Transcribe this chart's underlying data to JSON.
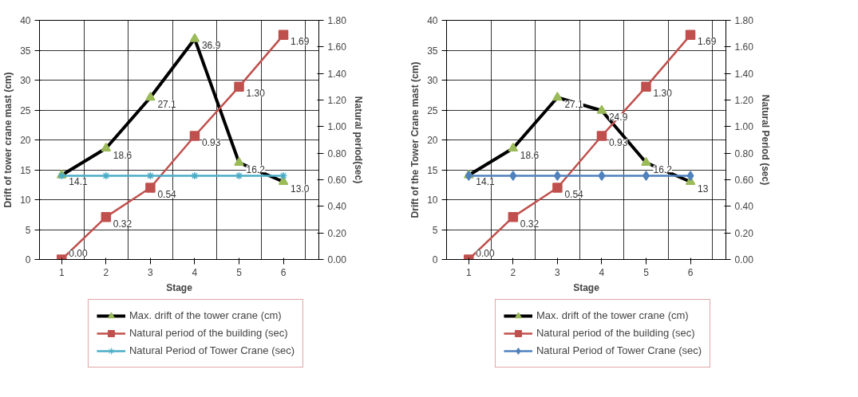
{
  "chart_data": [
    {
      "type": "line",
      "xlabel": "Stage",
      "ylabel": "Drift of tower crane mast (cm)",
      "y2label": "Natural period(sec)",
      "categories": [
        "1",
        "2",
        "3",
        "4",
        "5",
        "6"
      ],
      "ylim": [
        0,
        40
      ],
      "yticks": [
        0,
        5,
        10,
        15,
        20,
        25,
        30,
        35,
        40
      ],
      "y2lim": [
        0,
        1.8
      ],
      "y2ticks": [
        {
          "value": 0,
          "label": "0.00"
        },
        {
          "value": 0.2,
          "label": "0.20"
        },
        {
          "value": 0.4,
          "label": "0.40"
        },
        {
          "value": 0.6,
          "label": "0.60"
        },
        {
          "value": 0.8,
          "label": "0.80"
        },
        {
          "value": 1.0,
          "label": "1.00"
        },
        {
          "value": 1.2,
          "label": "1.20"
        },
        {
          "value": 1.4,
          "label": "1.40"
        },
        {
          "value": 1.6,
          "label": "1.60"
        },
        {
          "value": 1.8,
          "label": "1.80"
        }
      ],
      "grid": true,
      "legend": "bottom",
      "series": [
        {
          "name": "Max. drift of the tower crane (cm)",
          "color": "#000000",
          "marker": "triangle",
          "values": [
            14.1,
            18.6,
            27.1,
            36.9,
            16.2,
            13.0
          ],
          "value_labels": [
            "14.1",
            "18.6",
            "27.1",
            "36.9",
            "16.2",
            "13.0"
          ]
        },
        {
          "name": "Natural period of the building (sec)",
          "color": "#c0504d",
          "marker": "square",
          "axis": "y2",
          "values": [
            0.0,
            0.32,
            0.54,
            0.93,
            1.3,
            1.69
          ],
          "value_labels": [
            "0.00",
            "0.32",
            "0.54",
            "0.93",
            "1.30",
            "1.69"
          ]
        },
        {
          "name": "Natural Period of Tower Crane (sec)",
          "color": "#4bacc6",
          "marker": "cross",
          "axis": "y2",
          "values": [
            0.63,
            0.63,
            0.63,
            0.63,
            0.63,
            0.63
          ]
        }
      ]
    },
    {
      "type": "line",
      "xlabel": "Stage",
      "ylabel": "Drift of the Tower Crane mast (cm)",
      "y2label": "Natural Period (sec)",
      "categories": [
        "1",
        "2",
        "3",
        "4",
        "5",
        "6"
      ],
      "ylim": [
        0,
        40
      ],
      "yticks": [
        0,
        5,
        10,
        15,
        20,
        25,
        30,
        35,
        40
      ],
      "y2lim": [
        0,
        1.8
      ],
      "y2ticks": [
        {
          "value": 0,
          "label": "0.00"
        },
        {
          "value": 0.2,
          "label": "0.20"
        },
        {
          "value": 0.4,
          "label": "0.40"
        },
        {
          "value": 0.6,
          "label": "0.60"
        },
        {
          "value": 0.8,
          "label": "0.80"
        },
        {
          "value": 1.0,
          "label": "1.00"
        },
        {
          "value": 1.2,
          "label": "1.20"
        },
        {
          "value": 1.4,
          "label": "1.40"
        },
        {
          "value": 1.6,
          "label": "1.60"
        },
        {
          "value": 1.8,
          "label": "1.80"
        }
      ],
      "grid": true,
      "legend": "bottom",
      "series": [
        {
          "name": "Max. drift of the tower crane (cm)",
          "color": "#000000",
          "marker": "triangle",
          "values": [
            14.1,
            18.6,
            27.1,
            24.9,
            16.2,
            13
          ],
          "value_labels": [
            "14.1",
            "18.6",
            "27.1",
            "24.9",
            "16.2",
            "13"
          ]
        },
        {
          "name": "Natural period of the building (sec)",
          "color": "#c0504d",
          "marker": "square",
          "axis": "y2",
          "values": [
            0.0,
            0.32,
            0.54,
            0.93,
            1.3,
            1.69
          ],
          "value_labels": [
            "0.00",
            "0.32",
            "0.54",
            "0.93",
            "1.30",
            "1.69"
          ]
        },
        {
          "name": "Natural Period of Tower Crane (sec)",
          "color": "#4f81bd",
          "marker": "diamond",
          "axis": "y2",
          "values": [
            0.63,
            0.63,
            0.63,
            0.63,
            0.63,
            0.63
          ]
        }
      ]
    }
  ]
}
